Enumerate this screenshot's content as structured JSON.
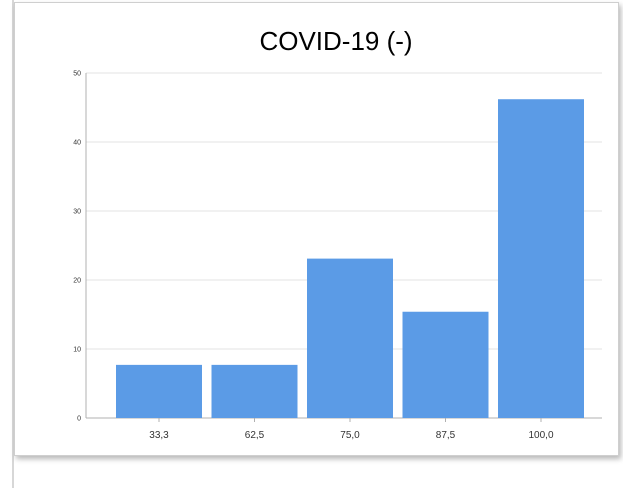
{
  "chart_data": {
    "type": "bar",
    "title": "COVID-19 (-)",
    "categories": [
      "33,3",
      "62,5",
      "75,0",
      "87,5",
      "100,0"
    ],
    "values": [
      7.7,
      7.7,
      23.1,
      15.4,
      46.2
    ],
    "xlabel": "",
    "ylabel": "",
    "ylim": [
      0,
      50
    ],
    "yticks": [
      "0",
      "10",
      "20",
      "30",
      "40",
      "50"
    ],
    "grid": true,
    "legend": "none",
    "colors": {
      "bar": "#5b9be6",
      "grid": "#e3e3e3",
      "axis": "#b0b0b0"
    }
  }
}
